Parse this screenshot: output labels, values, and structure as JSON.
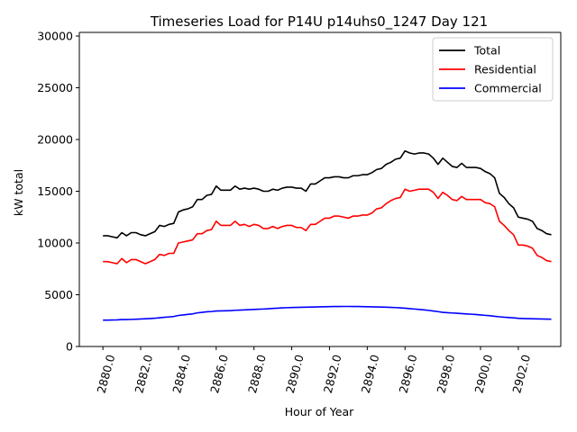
{
  "chart_data": {
    "type": "line",
    "title": "Timeseries Load for P14U p14uhs0_1247  Day 121",
    "xlabel": "Hour of Year",
    "ylabel": "kW total",
    "xlim": [
      2878.75,
      2904.25
    ],
    "ylim": [
      0,
      30350
    ],
    "x_ticks": [
      2880,
      2882,
      2884,
      2886,
      2888,
      2890,
      2892,
      2894,
      2896,
      2898,
      2900,
      2902
    ],
    "x_tick_labels": [
      "2880.0",
      "2882.0",
      "2884.0",
      "2886.0",
      "2888.0",
      "2890.0",
      "2892.0",
      "2894.0",
      "2896.0",
      "2898.0",
      "2900.0",
      "2902.0"
    ],
    "y_ticks": [
      0,
      5000,
      10000,
      15000,
      20000,
      25000,
      30000
    ],
    "y_tick_labels": [
      "0",
      "5000",
      "10000",
      "15000",
      "20000",
      "25000",
      "30000"
    ],
    "legend_position": "top-right",
    "x": [
      2880.0,
      2880.25,
      2880.5,
      2880.75,
      2881.0,
      2881.25,
      2881.5,
      2881.75,
      2882.0,
      2882.25,
      2882.5,
      2882.75,
      2883.0,
      2883.25,
      2883.5,
      2883.75,
      2884.0,
      2884.25,
      2884.5,
      2884.75,
      2885.0,
      2885.25,
      2885.5,
      2885.75,
      2886.0,
      2886.25,
      2886.5,
      2886.75,
      2887.0,
      2887.25,
      2887.5,
      2887.75,
      2888.0,
      2888.25,
      2888.5,
      2888.75,
      2889.0,
      2889.25,
      2889.5,
      2889.75,
      2890.0,
      2890.25,
      2890.5,
      2890.75,
      2891.0,
      2891.25,
      2891.5,
      2891.75,
      2892.0,
      2892.25,
      2892.5,
      2892.75,
      2893.0,
      2893.25,
      2893.5,
      2893.75,
      2894.0,
      2894.25,
      2894.5,
      2894.75,
      2895.0,
      2895.25,
      2895.5,
      2895.75,
      2896.0,
      2896.25,
      2896.5,
      2896.75,
      2897.0,
      2897.25,
      2897.5,
      2897.75,
      2898.0,
      2898.25,
      2898.5,
      2898.75,
      2899.0,
      2899.25,
      2899.5,
      2899.75,
      2900.0,
      2900.25,
      2900.5,
      2900.75,
      2901.0,
      2901.25,
      2901.5,
      2901.75,
      2902.0,
      2902.25,
      2902.5,
      2902.75,
      2903.0,
      2903.25,
      2903.5,
      2903.75
    ],
    "series": [
      {
        "name": "Total",
        "color": "#000000",
        "values": [
          10700,
          10700,
          10600,
          10500,
          11000,
          10700,
          11000,
          11000,
          10800,
          10700,
          10900,
          11100,
          11700,
          11600,
          11800,
          11900,
          13000,
          13200,
          13300,
          13500,
          14200,
          14200,
          14600,
          14700,
          15500,
          15100,
          15100,
          15100,
          15500,
          15200,
          15300,
          15200,
          15300,
          15200,
          15000,
          15000,
          15200,
          15100,
          15300,
          15400,
          15400,
          15300,
          15300,
          15000,
          15700,
          15700,
          16000,
          16300,
          16300,
          16400,
          16400,
          16300,
          16300,
          16500,
          16500,
          16600,
          16600,
          16800,
          17100,
          17200,
          17600,
          17800,
          18100,
          18200,
          18900,
          18700,
          18600,
          18700,
          18700,
          18600,
          18200,
          17600,
          18200,
          17800,
          17400,
          17300,
          17700,
          17300,
          17300,
          17300,
          17200,
          16900,
          16700,
          16300,
          14800,
          14400,
          13800,
          13400,
          12500,
          12400,
          12300,
          12100,
          11400,
          11200,
          10900,
          10800
        ]
      },
      {
        "name": "Residential",
        "color": "#ff0000",
        "values": [
          8200,
          8200,
          8100,
          8000,
          8500,
          8100,
          8400,
          8400,
          8200,
          8000,
          8200,
          8400,
          8900,
          8800,
          9000,
          9000,
          10000,
          10100,
          10200,
          10300,
          10900,
          10900,
          11200,
          11300,
          12100,
          11700,
          11700,
          11700,
          12100,
          11700,
          11800,
          11600,
          11800,
          11700,
          11400,
          11400,
          11600,
          11400,
          11600,
          11700,
          11700,
          11500,
          11500,
          11200,
          11800,
          11800,
          12100,
          12400,
          12400,
          12600,
          12600,
          12500,
          12400,
          12600,
          12600,
          12700,
          12700,
          12900,
          13300,
          13400,
          13800,
          14100,
          14300,
          14400,
          15200,
          15000,
          15100,
          15200,
          15200,
          15200,
          14900,
          14300,
          14900,
          14600,
          14200,
          14100,
          14500,
          14200,
          14200,
          14200,
          14200,
          13900,
          13800,
          13500,
          12100,
          11700,
          11200,
          10800,
          9800,
          9800,
          9700,
          9500,
          8800,
          8600,
          8300,
          8200
        ]
      },
      {
        "name": "Commercial",
        "color": "#0000ff",
        "values": [
          2550,
          2550,
          2560,
          2570,
          2600,
          2600,
          2620,
          2640,
          2660,
          2680,
          2700,
          2730,
          2780,
          2820,
          2860,
          2900,
          3000,
          3050,
          3100,
          3150,
          3250,
          3300,
          3350,
          3380,
          3430,
          3440,
          3450,
          3460,
          3500,
          3520,
          3540,
          3560,
          3580,
          3600,
          3620,
          3650,
          3680,
          3700,
          3730,
          3750,
          3770,
          3780,
          3790,
          3800,
          3810,
          3820,
          3830,
          3840,
          3850,
          3860,
          3860,
          3870,
          3870,
          3860,
          3860,
          3850,
          3840,
          3830,
          3820,
          3810,
          3800,
          3780,
          3760,
          3730,
          3700,
          3660,
          3620,
          3580,
          3540,
          3490,
          3430,
          3370,
          3300,
          3270,
          3240,
          3210,
          3180,
          3150,
          3120,
          3090,
          3050,
          3010,
          2970,
          2920,
          2870,
          2830,
          2800,
          2770,
          2720,
          2700,
          2690,
          2680,
          2670,
          2660,
          2650,
          2640
        ]
      }
    ]
  }
}
